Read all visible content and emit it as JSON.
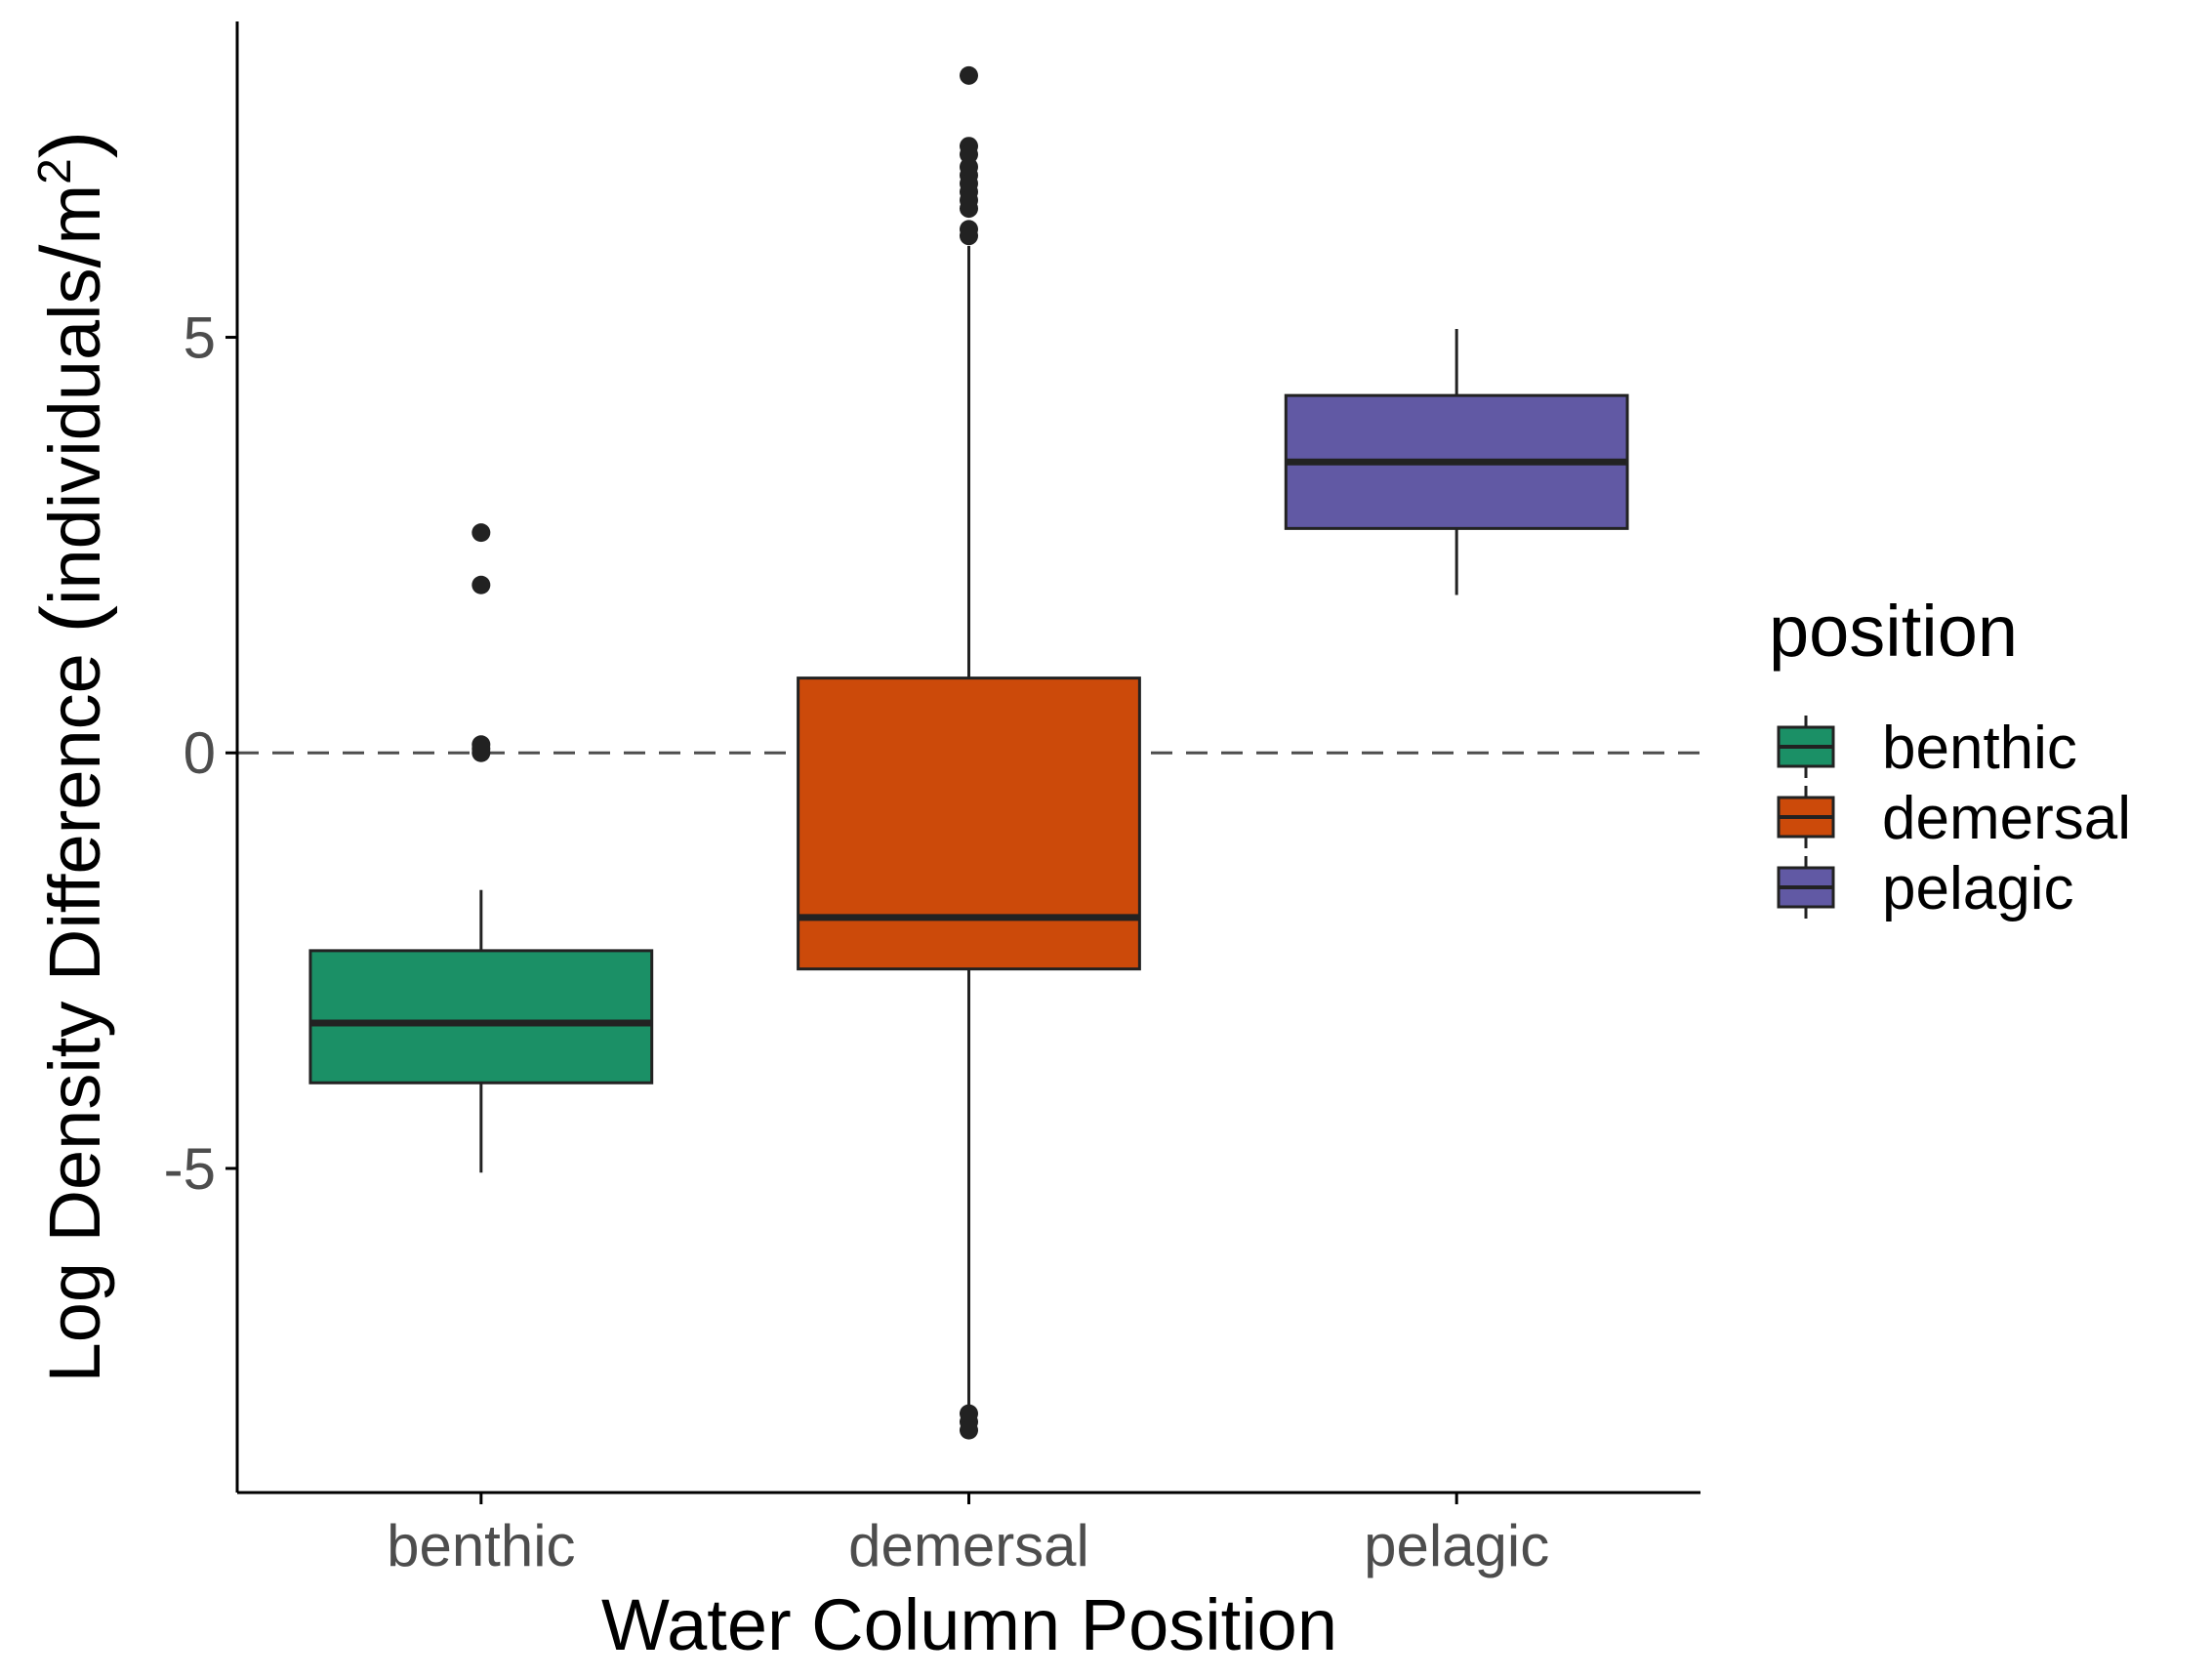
{
  "chart_data": {
    "type": "boxplot",
    "xlabel": "Water Column Position",
    "ylabel": {
      "main": "Log Density Difference ",
      "unit_open": "(",
      "unit_text": "individuals",
      "unit_slash": "/",
      "unit_m": "m",
      "unit_sup": "2",
      "unit_close": ")"
    },
    "ylim": [
      -8.9,
      8.8
    ],
    "yticks": [
      {
        "value": 5,
        "label": "5"
      },
      {
        "value": 0,
        "label": "0"
      },
      {
        "value": -5,
        "label": "-5"
      }
    ],
    "reference_line": {
      "value": 0,
      "style": "dashed"
    },
    "categories": [
      "benthic",
      "demersal",
      "pelagic"
    ],
    "series": [
      {
        "name": "benthic",
        "color": "#1b9066",
        "whisker_low": -5.05,
        "q1": -3.97,
        "median": -3.25,
        "q3": -2.38,
        "whisker_high": -1.65,
        "outliers": [
          2.65,
          2.02,
          0.1,
          0.05,
          0.0
        ]
      },
      {
        "name": "demersal",
        "color": "#cc4a0a",
        "whisker_low": -7.9,
        "q1": -2.6,
        "median": -1.98,
        "q3": 0.9,
        "whisker_high": 6.1,
        "outliers": [
          8.15,
          7.3,
          7.2,
          7.05,
          6.95,
          6.85,
          6.75,
          6.65,
          6.55,
          6.3,
          6.22,
          -7.95,
          -8.05,
          -8.15
        ]
      },
      {
        "name": "pelagic",
        "color": "#6159a4",
        "whisker_low": 1.9,
        "q1": 2.7,
        "median": 3.5,
        "q3": 4.3,
        "whisker_high": 5.1,
        "outliers": []
      }
    ],
    "legend": {
      "title": "position",
      "placement": "right",
      "items": [
        "benthic",
        "demersal",
        "pelagic"
      ]
    },
    "grid": false
  }
}
